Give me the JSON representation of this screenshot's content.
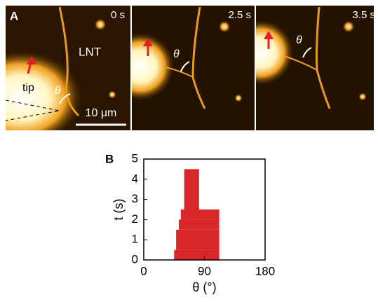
{
  "panel_a": {
    "label": "A",
    "frames": [
      "0 s",
      "2.5 s",
      "3.5 s"
    ],
    "lnt": "LNT",
    "tip": "tip",
    "theta": "θ",
    "scale_bar": "10 μm"
  },
  "chart_data": {
    "type": "range",
    "label": "B",
    "xlabel": "θ (°)",
    "ylabel": "t (s)",
    "t_bins": [
      0,
      0.5,
      1.5,
      2,
      2.5,
      4.5
    ],
    "theta_min": [
      45,
      48,
      52,
      55,
      60
    ],
    "theta_max": [
      112,
      112,
      112,
      112,
      82
    ],
    "color": "#d9262b",
    "xlim": [
      0,
      180
    ],
    "xticks": [
      0,
      90,
      180
    ],
    "ylim": [
      0,
      5
    ],
    "yticks": [
      0,
      1,
      2,
      3,
      4,
      5
    ]
  }
}
